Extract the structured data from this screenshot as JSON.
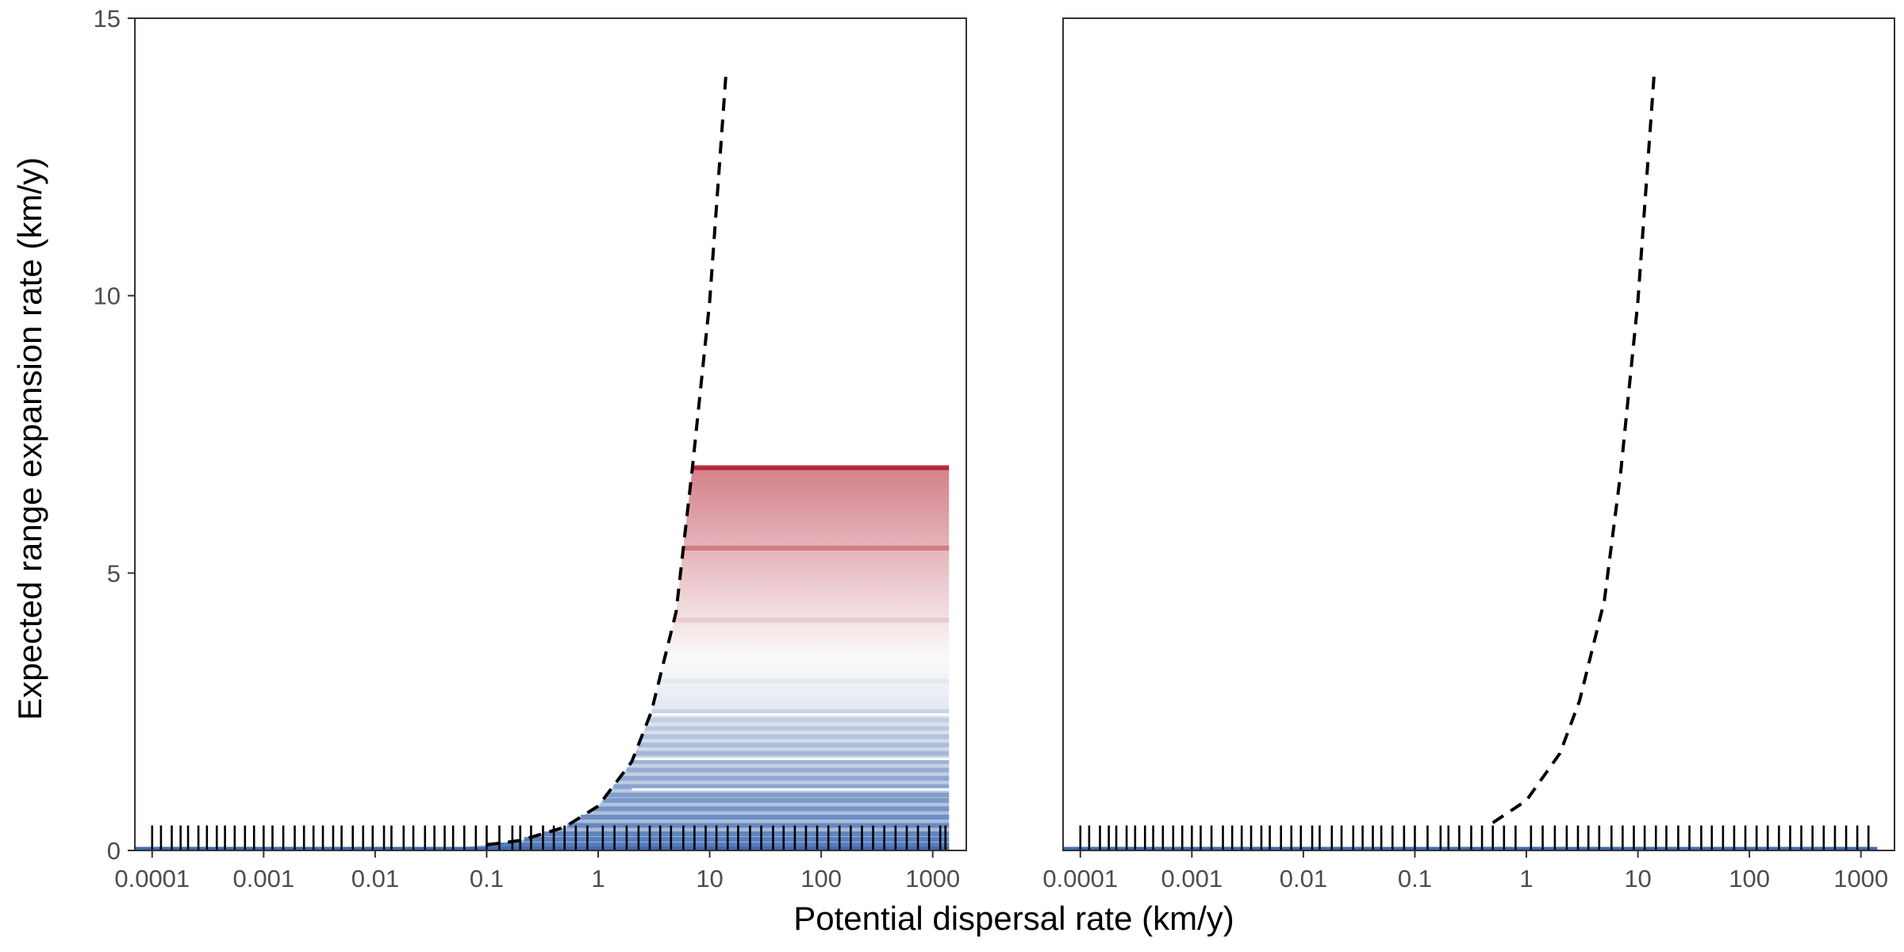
{
  "chart_data": [
    {
      "type": "line",
      "panel": "left",
      "x_scale": "log10",
      "xlabel": "Potential dispersal rate (km/y)",
      "ylabel": "Expected range expansion rate (km/y)",
      "xlim": [
        7e-05,
        2000
      ],
      "ylim": [
        0,
        15
      ],
      "x_ticks": [
        "0.0001",
        "0.001",
        "0.01",
        "0.1",
        "1",
        "10",
        "100",
        "1000"
      ],
      "y_ticks": [
        "0",
        "5",
        "10",
        "15"
      ],
      "grid": false,
      "series": [
        {
          "style": "dashed black",
          "x": [
            0.1,
            0.2,
            0.5,
            1,
            2,
            3,
            5,
            7,
            10,
            14
          ],
          "y": [
            0.1,
            0.18,
            0.42,
            0.8,
            1.6,
            2.5,
            4.3,
            6.9,
            9.9,
            14
          ]
        },
        {
          "style": "filled blue-to-red band, flat plateaus to x = 1400",
          "plateaus": [
            0.1,
            0.2,
            0.3,
            0.45,
            0.6,
            0.75,
            0.9,
            1.0,
            1.15,
            1.3,
            1.45,
            1.6,
            1.75,
            1.9,
            2.05,
            2.2,
            2.35,
            2.5,
            3.05,
            4.15,
            5.45,
            6.9
          ],
          "x_max": 1400
        }
      ],
      "rug_x": [
        0.0001,
        0.00012,
        0.00015,
        0.00018,
        0.00021,
        0.00026,
        0.00031,
        0.00038,
        0.00045,
        0.00055,
        0.00068,
        0.00082,
        0.001,
        0.0012,
        0.0015,
        0.0019,
        0.0023,
        0.0028,
        0.0034,
        0.0042,
        0.005,
        0.0063,
        0.0078,
        0.0095,
        0.012,
        0.014,
        0.018,
        0.022,
        0.028,
        0.034,
        0.042,
        0.05,
        0.063,
        0.08,
        0.1,
        0.13,
        0.17,
        0.2,
        0.25,
        0.32,
        0.4,
        0.5,
        0.63,
        0.8,
        1.1,
        1.4,
        1.8,
        2.3,
        2.9,
        3.6,
        4.5,
        5.8,
        7.3,
        9.2,
        11.5,
        14.5,
        18,
        23,
        29,
        37,
        46,
        58,
        73,
        92,
        116,
        146,
        184,
        232,
        292,
        368,
        464,
        585,
        737,
        928,
        1169,
        1300
      ]
    },
    {
      "type": "line",
      "panel": "right",
      "x_scale": "log10",
      "xlim": [
        7e-05,
        2000
      ],
      "ylim": [
        0,
        15
      ],
      "x_ticks": [
        "0.0001",
        "0.001",
        "0.01",
        "0.1",
        "1",
        "10",
        "100",
        "1000"
      ],
      "grid": false,
      "series": [
        {
          "style": "dashed black",
          "x": [
            0.5,
            1,
            2,
            3,
            5,
            7,
            10,
            14
          ],
          "y": [
            0.5,
            0.9,
            1.75,
            2.7,
            4.5,
            6.8,
            9.9,
            14
          ]
        },
        {
          "style": "solid blue baseline",
          "x": [
            7e-05,
            1400
          ],
          "y": [
            0,
            0
          ]
        }
      ],
      "rug_x": [
        0.0001,
        0.00012,
        0.00015,
        0.00018,
        0.00021,
        0.00026,
        0.00031,
        0.00038,
        0.00045,
        0.00055,
        0.00068,
        0.00082,
        0.001,
        0.0012,
        0.0015,
        0.0019,
        0.0023,
        0.0028,
        0.0034,
        0.0042,
        0.005,
        0.0063,
        0.0078,
        0.0095,
        0.012,
        0.014,
        0.018,
        0.022,
        0.028,
        0.034,
        0.042,
        0.05,
        0.063,
        0.08,
        0.1,
        0.13,
        0.17,
        0.2,
        0.25,
        0.32,
        0.4,
        0.5,
        0.63,
        0.8,
        1.1,
        1.4,
        1.8,
        2.3,
        2.9,
        3.6,
        4.5,
        5.8,
        7.3,
        9.2,
        11.5,
        14.5,
        18,
        23,
        29,
        37,
        46,
        58,
        73,
        92,
        116,
        146,
        184,
        232,
        292,
        368,
        464,
        585,
        737,
        928,
        1169
      ]
    }
  ],
  "colors": {
    "low": "#4a72b5",
    "mid": "#f7f7f7",
    "high": "#b2182b",
    "rug": "#000000",
    "baseline": "#3b6bb0"
  }
}
